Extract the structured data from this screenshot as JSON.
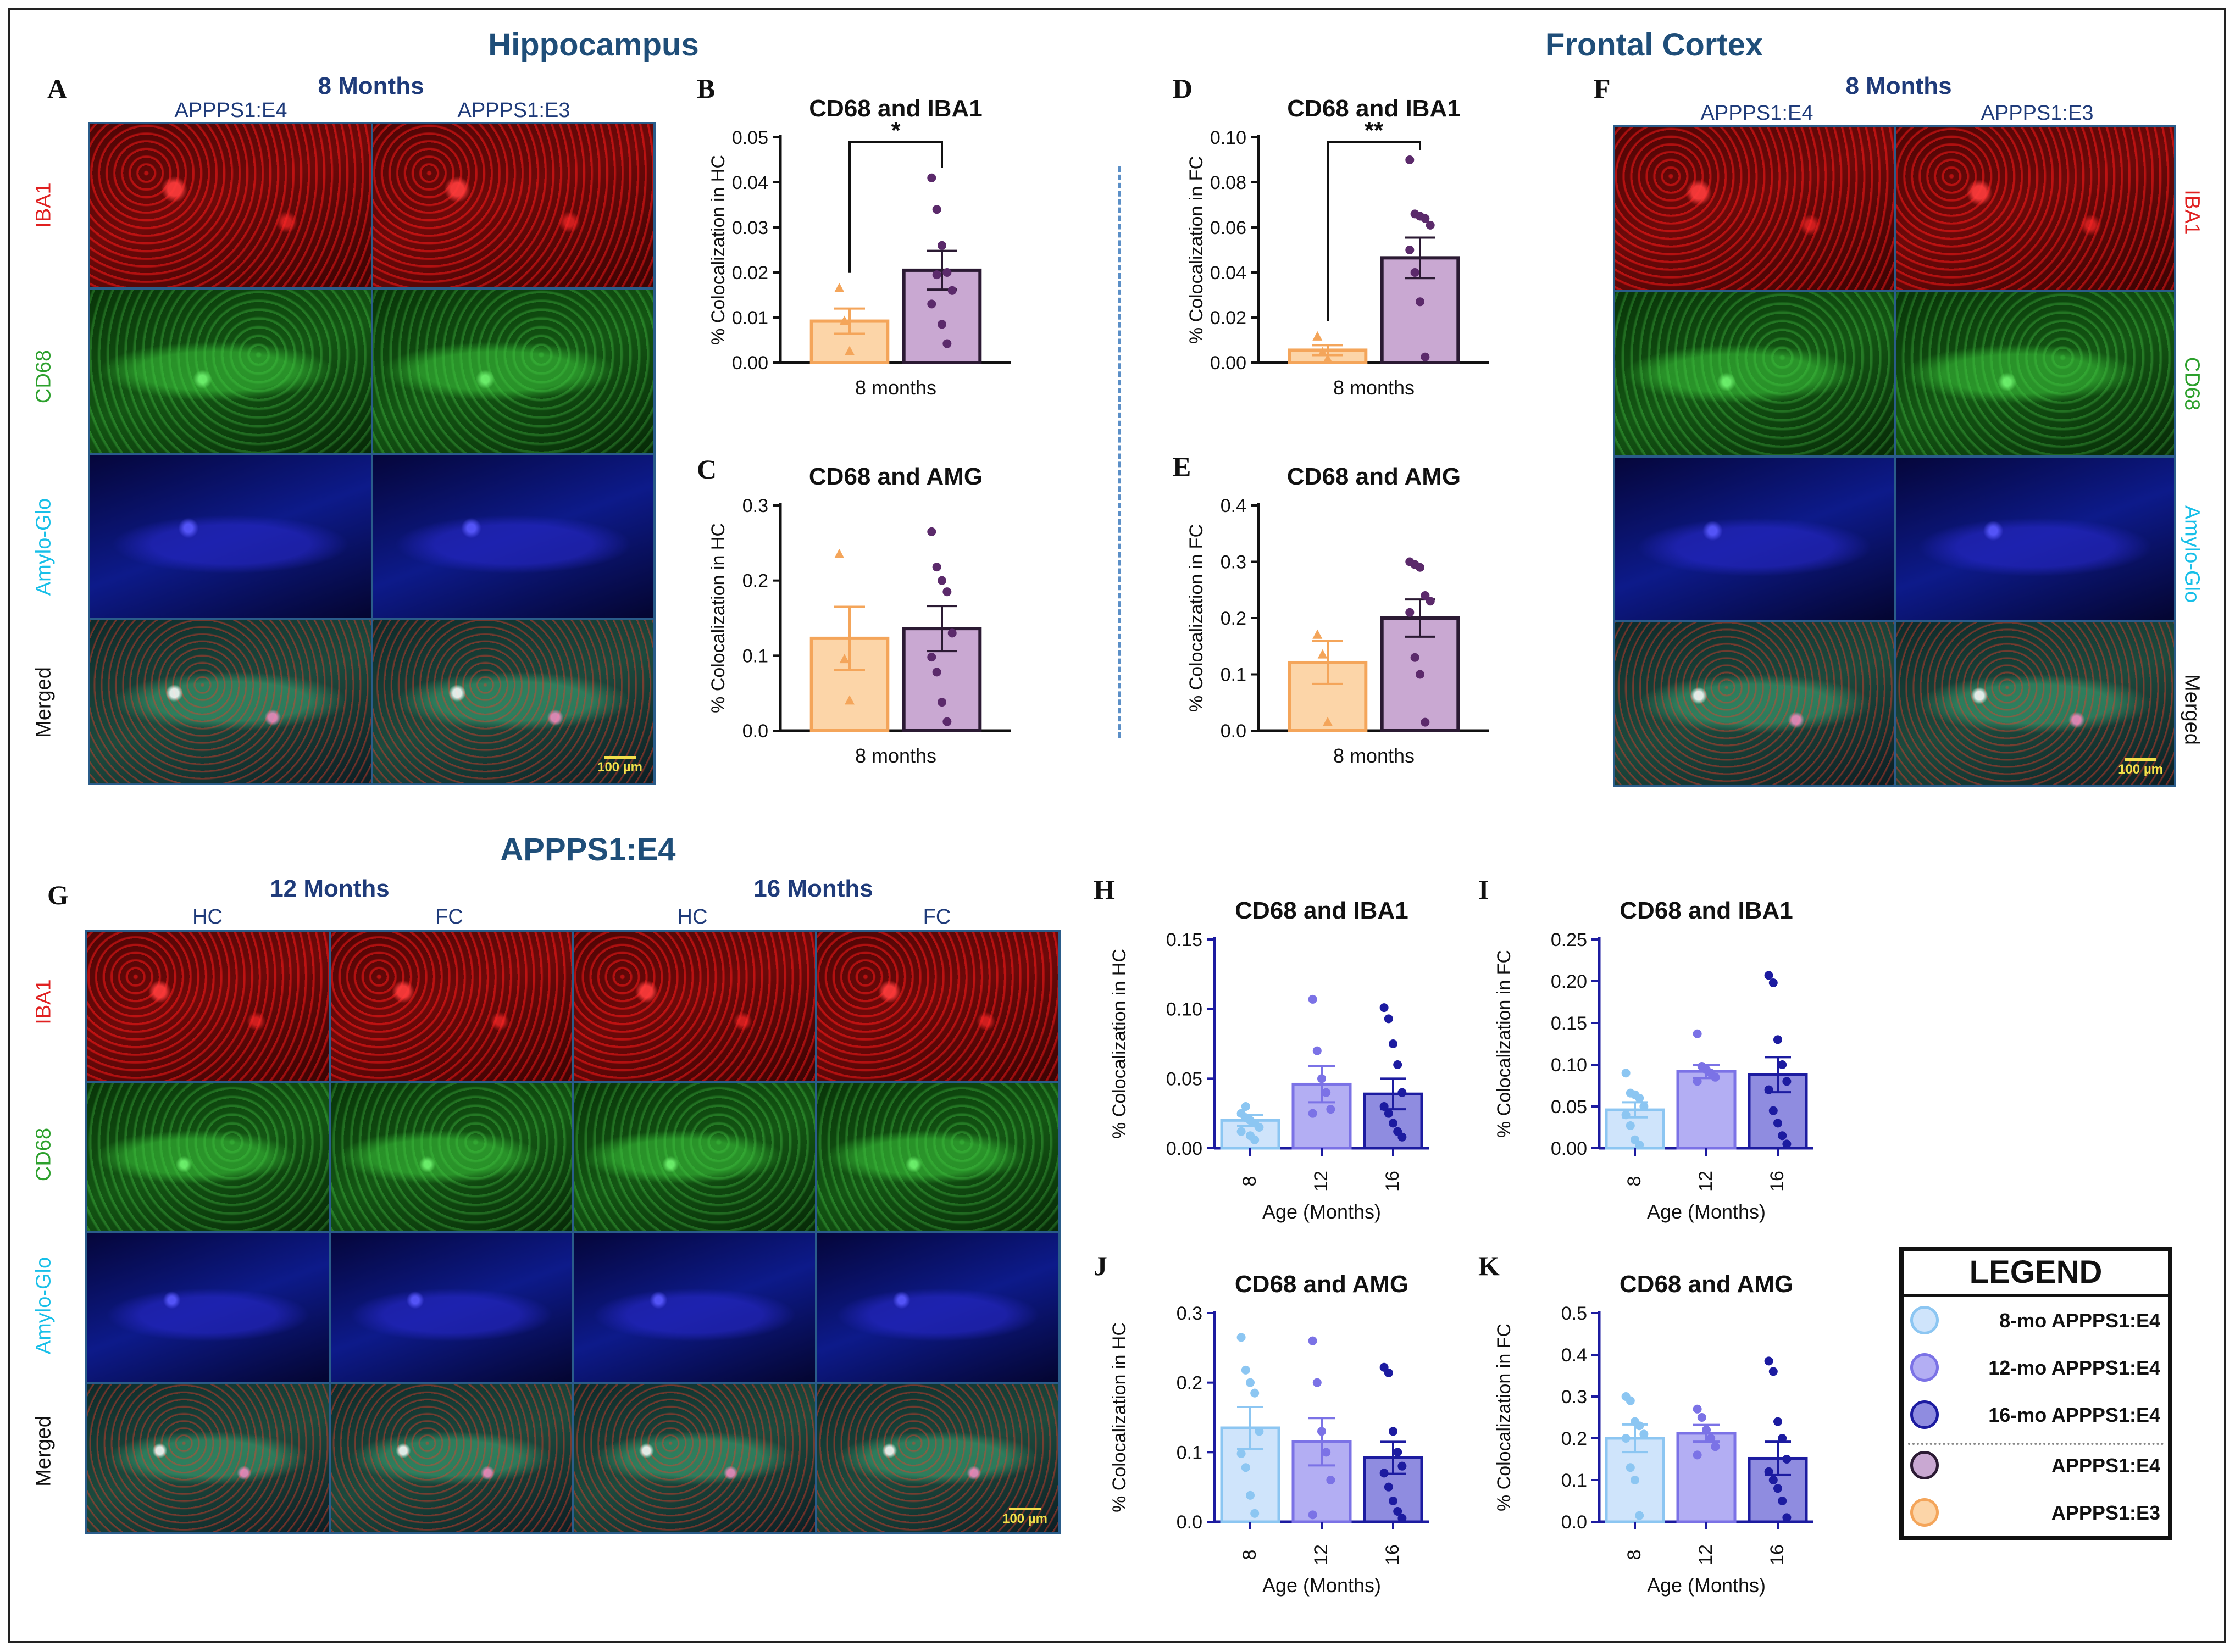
{
  "colors": {
    "e3_fill": "#fcd5a8",
    "e3_stroke": "#f4a55a",
    "e4_fill": "#c9a8d2",
    "e4_stroke": "#2b1a33",
    "e4_dot": "#5b2a6b",
    "e3_dot": "#f4a55a",
    "mo8_fill": "#cfe4fb",
    "mo8_stroke": "#8cc6f2",
    "mo12_fill": "#b3aef3",
    "mo12_stroke": "#7b72e6",
    "mo16_fill": "#8f8ce0",
    "mo16_stroke": "#1c1ba0",
    "iba1": "#e02020",
    "cd68": "#2ca02c",
    "amg": "#17bfe8"
  },
  "titles": {
    "hippocampus": "Hippocampus",
    "frontal_cortex": "Frontal Cortex",
    "apppse4": "APPPS1:E4"
  },
  "panels": {
    "A": "A",
    "B": "B",
    "C": "C",
    "D": "D",
    "E": "E",
    "F": "F",
    "G": "G",
    "H": "H",
    "I": "I",
    "J": "J",
    "K": "K"
  },
  "micro": {
    "age_8": "8 Months",
    "age_12": "12 Months",
    "age_16": "16 Months",
    "col_e4": "APPPS1:E4",
    "col_e3": "APPPS1:E3",
    "col_hc": "HC",
    "col_fc": "FC",
    "row_iba1": "IBA1",
    "row_cd68": "CD68",
    "row_amg": "Amylo-Glo",
    "row_merged": "Merged",
    "scale": "100 µm"
  },
  "legend": {
    "title": "LEGEND",
    "items": [
      "8-mo APPPS1:E4",
      "12-mo APPPS1:E4",
      "16-mo APPPS1:E4",
      "APPPS1:E4",
      "APPPS1:E3"
    ]
  },
  "chart_data": [
    {
      "panel": "B",
      "type": "bar",
      "title": "CD68 and IBA1",
      "ylabel": "% Colocalization in HC",
      "xlabel": "8 months",
      "ylim": [
        0,
        0.05
      ],
      "yticks": [
        "0.00",
        "0.01",
        "0.02",
        "0.03",
        "0.04",
        "0.05"
      ],
      "series": [
        {
          "name": "APPPS1:E3",
          "mean": 0.0092,
          "sem": 0.0028,
          "points": [
            0.0165,
            0.0092,
            0.0025
          ],
          "marker": "triangle"
        },
        {
          "name": "APPPS1:E4",
          "mean": 0.0205,
          "sem": 0.0043,
          "points": [
            0.041,
            0.034,
            0.026,
            0.02,
            0.016,
            0.013,
            0.0195,
            0.0085,
            0.0042
          ],
          "marker": "circle"
        }
      ],
      "significance": "*"
    },
    {
      "panel": "C",
      "type": "bar",
      "title": "CD68 and AMG",
      "ylabel": "% Colocalization in HC",
      "xlabel": "8 months",
      "ylim": [
        0,
        0.3
      ],
      "yticks": [
        "0.0",
        "0.1",
        "0.2",
        "0.3"
      ],
      "series": [
        {
          "name": "APPPS1:E3",
          "mean": 0.123,
          "sem": 0.042,
          "points": [
            0.235,
            0.095,
            0.04
          ],
          "marker": "triangle"
        },
        {
          "name": "APPPS1:E4",
          "mean": 0.136,
          "sem": 0.03,
          "points": [
            0.265,
            0.218,
            0.2,
            0.185,
            0.13,
            0.098,
            0.078,
            0.038,
            0.012
          ],
          "marker": "circle"
        }
      ]
    },
    {
      "panel": "D",
      "type": "bar",
      "title": "CD68 and IBA1",
      "ylabel": "% Colocalization in FC",
      "xlabel": "8 months",
      "ylim": [
        0,
        0.1
      ],
      "yticks": [
        "0.00",
        "0.02",
        "0.04",
        "0.06",
        "0.08",
        "0.10"
      ],
      "series": [
        {
          "name": "APPPS1:E3",
          "mean": 0.0055,
          "sem": 0.0022,
          "points": [
            0.0115,
            0.0045,
            0.0015
          ],
          "marker": "triangle"
        },
        {
          "name": "APPPS1:E4",
          "mean": 0.0465,
          "sem": 0.009,
          "points": [
            0.09,
            0.066,
            0.065,
            0.064,
            0.061,
            0.05,
            0.04,
            0.027,
            0.0025
          ],
          "marker": "circle"
        }
      ],
      "significance": "**"
    },
    {
      "panel": "E",
      "type": "bar",
      "title": "CD68 and AMG",
      "ylabel": "% Colocalization in FC",
      "xlabel": "8 months",
      "ylim": [
        0,
        0.4
      ],
      "yticks": [
        "0.0",
        "0.1",
        "0.2",
        "0.3",
        "0.4"
      ],
      "series": [
        {
          "name": "APPPS1:E3",
          "mean": 0.121,
          "sem": 0.038,
          "points": [
            0.17,
            0.135,
            0.015
          ],
          "marker": "triangle"
        },
        {
          "name": "APPPS1:E4",
          "mean": 0.2,
          "sem": 0.033,
          "points": [
            0.3,
            0.295,
            0.29,
            0.24,
            0.23,
            0.21,
            0.13,
            0.1,
            0.015
          ],
          "marker": "circle"
        }
      ]
    },
    {
      "panel": "H",
      "type": "bar",
      "title": "CD68 and IBA1",
      "ylabel": "% Colocalization in HC",
      "xlabel": "Age (Months)",
      "categories": [
        "8",
        "12",
        "16"
      ],
      "ylim": [
        0,
        0.15
      ],
      "yticks": [
        "0.00",
        "0.05",
        "0.10",
        "0.15"
      ],
      "series": [
        {
          "name": "8-mo",
          "mean": 0.02,
          "sem": 0.004,
          "points": [
            0.025,
            0.022,
            0.02,
            0.018,
            0.015,
            0.012,
            0.03,
            0.009,
            0.006
          ]
        },
        {
          "name": "12-mo",
          "mean": 0.046,
          "sem": 0.013,
          "points": [
            0.107,
            0.07,
            0.05,
            0.04,
            0.028,
            0.025
          ]
        },
        {
          "name": "16-mo",
          "mean": 0.039,
          "sem": 0.011,
          "points": [
            0.101,
            0.093,
            0.075,
            0.06,
            0.04,
            0.03,
            0.025,
            0.018,
            0.012,
            0.008
          ]
        }
      ]
    },
    {
      "panel": "I",
      "type": "bar",
      "title": "CD68 and IBA1",
      "ylabel": "% Colocalization in FC",
      "xlabel": "Age (Months)",
      "categories": [
        "8",
        "12",
        "16"
      ],
      "ylim": [
        0,
        0.25
      ],
      "yticks": [
        "0.00",
        "0.05",
        "0.10",
        "0.15",
        "0.20",
        "0.25"
      ],
      "series": [
        {
          "name": "8-mo",
          "mean": 0.046,
          "sem": 0.009,
          "points": [
            0.09,
            0.066,
            0.064,
            0.06,
            0.05,
            0.04,
            0.027,
            0.01,
            0.004
          ]
        },
        {
          "name": "12-mo",
          "mean": 0.092,
          "sem": 0.008,
          "points": [
            0.137,
            0.098,
            0.094,
            0.09,
            0.085,
            0.08
          ]
        },
        {
          "name": "16-mo",
          "mean": 0.088,
          "sem": 0.021,
          "points": [
            0.207,
            0.198,
            0.13,
            0.1,
            0.08,
            0.07,
            0.045,
            0.03,
            0.015,
            0.005
          ]
        }
      ]
    },
    {
      "panel": "J",
      "type": "bar",
      "title": "CD68 and AMG",
      "ylabel": "% Colocalization in HC",
      "xlabel": "Age (Months)",
      "categories": [
        "8",
        "12",
        "16"
      ],
      "ylim": [
        0,
        0.3
      ],
      "yticks": [
        "0.0",
        "0.1",
        "0.2",
        "0.3"
      ],
      "series": [
        {
          "name": "8-mo",
          "mean": 0.135,
          "sem": 0.03,
          "points": [
            0.265,
            0.218,
            0.2,
            0.185,
            0.13,
            0.098,
            0.078,
            0.038,
            0.012
          ]
        },
        {
          "name": "12-mo",
          "mean": 0.115,
          "sem": 0.034,
          "points": [
            0.26,
            0.2,
            0.13,
            0.1,
            0.06,
            0.01
          ]
        },
        {
          "name": "16-mo",
          "mean": 0.092,
          "sem": 0.023,
          "points": [
            0.222,
            0.214,
            0.13,
            0.1,
            0.08,
            0.07,
            0.05,
            0.03,
            0.015,
            0.005
          ]
        }
      ]
    },
    {
      "panel": "K",
      "type": "bar",
      "title": "CD68 and AMG",
      "ylabel": "% Colocalization in FC",
      "xlabel": "Age (Months)",
      "categories": [
        "8",
        "12",
        "16"
      ],
      "ylim": [
        0,
        0.5
      ],
      "yticks": [
        "0.0",
        "0.1",
        "0.2",
        "0.3",
        "0.4",
        "0.5"
      ],
      "series": [
        {
          "name": "8-mo",
          "mean": 0.2,
          "sem": 0.033,
          "points": [
            0.3,
            0.29,
            0.24,
            0.23,
            0.21,
            0.2,
            0.13,
            0.1,
            0.015
          ]
        },
        {
          "name": "12-mo",
          "mean": 0.212,
          "sem": 0.02,
          "points": [
            0.27,
            0.25,
            0.22,
            0.2,
            0.18,
            0.16
          ]
        },
        {
          "name": "16-mo",
          "mean": 0.152,
          "sem": 0.04,
          "points": [
            0.385,
            0.36,
            0.24,
            0.2,
            0.15,
            0.12,
            0.1,
            0.08,
            0.05,
            0.01
          ]
        }
      ]
    }
  ]
}
